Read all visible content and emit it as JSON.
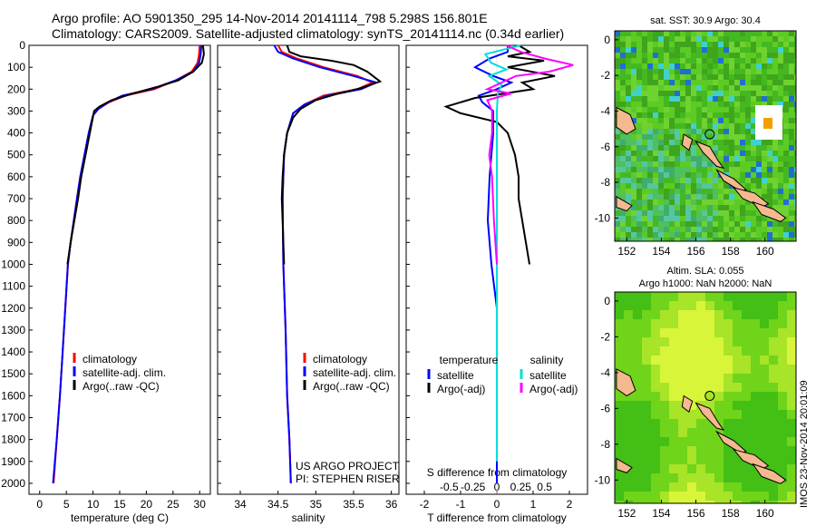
{
  "title_line1": "Argo profile: AO 5901350_295 14-Nov-2014 20141114_798 5.298S 156.801E",
  "title_line2": "Climatology: CARS2009. Satellite-adjusted climatology: synTS_20141114.nc (0.34d earlier)",
  "timestamp": "IMOS 23-Nov-2014 20:01:09",
  "colors": {
    "climatology": "#ff0000",
    "satellite": "#0000ff",
    "argo": "#000000",
    "argo_salinity": "#ff00ff",
    "satellite_salinity": "#00dddd"
  },
  "chart_data": [
    {
      "type": "line",
      "panel": "temperature",
      "xlabel": "temperature (deg C)",
      "ylim": [
        2050,
        0
      ],
      "xlim": [
        -2,
        32
      ],
      "xticks": [
        0,
        5,
        10,
        15,
        20,
        25,
        30
      ],
      "yticks": [
        0,
        100,
        200,
        300,
        400,
        500,
        600,
        700,
        800,
        900,
        1000,
        1100,
        1200,
        1300,
        1400,
        1500,
        1600,
        1700,
        1800,
        1900,
        2000
      ],
      "legend": [
        "climatology",
        "satellite-adj. clim.",
        "Argo(..raw -QC)"
      ],
      "series": [
        {
          "name": "climatology",
          "color": "#ff0000",
          "points": [
            [
              30.0,
              0
            ],
            [
              29.9,
              40
            ],
            [
              29.6,
              80
            ],
            [
              28.5,
              120
            ],
            [
              25.5,
              160
            ],
            [
              21.5,
              200
            ],
            [
              16.0,
              230
            ],
            [
              13.0,
              260
            ],
            [
              11.0,
              290
            ],
            [
              10.0,
              320
            ],
            [
              9.2,
              400
            ],
            [
              8.4,
              500
            ],
            [
              7.6,
              600
            ],
            [
              7.0,
              700
            ],
            [
              6.4,
              800
            ],
            [
              5.8,
              900
            ],
            [
              5.3,
              1000
            ],
            [
              4.8,
              1200
            ],
            [
              4.3,
              1400
            ],
            [
              3.8,
              1600
            ],
            [
              3.2,
              1800
            ],
            [
              2.6,
              2000
            ]
          ]
        },
        {
          "name": "satellite-adj. clim.",
          "color": "#0000ff",
          "points": [
            [
              30.3,
              0
            ],
            [
              30.2,
              40
            ],
            [
              29.9,
              80
            ],
            [
              28.8,
              120
            ],
            [
              25.5,
              160
            ],
            [
              21.0,
              200
            ],
            [
              15.5,
              230
            ],
            [
              12.8,
              260
            ],
            [
              11.0,
              290
            ],
            [
              10.0,
              320
            ],
            [
              9.2,
              400
            ],
            [
              8.4,
              500
            ],
            [
              7.6,
              600
            ],
            [
              7.0,
              700
            ],
            [
              6.4,
              800
            ],
            [
              5.8,
              900
            ],
            [
              5.3,
              1000
            ],
            [
              4.8,
              1200
            ],
            [
              4.3,
              1400
            ],
            [
              3.8,
              1600
            ],
            [
              3.2,
              1800
            ],
            [
              2.5,
              2000
            ]
          ]
        },
        {
          "name": "Argo(..raw -QC)",
          "color": "#000000",
          "points": [
            [
              30.6,
              0
            ],
            [
              30.8,
              40
            ],
            [
              30.4,
              80
            ],
            [
              28.8,
              120
            ],
            [
              26.0,
              160
            ],
            [
              22.0,
              190
            ],
            [
              17.5,
              220
            ],
            [
              13.5,
              250
            ],
            [
              11.2,
              280
            ],
            [
              10.2,
              300
            ],
            [
              9.4,
              400
            ],
            [
              8.6,
              500
            ],
            [
              7.8,
              600
            ],
            [
              7.2,
              700
            ],
            [
              6.5,
              800
            ],
            [
              5.8,
              900
            ],
            [
              5.2,
              1000
            ]
          ]
        }
      ]
    },
    {
      "type": "line",
      "panel": "salinity",
      "xlabel": "salinity",
      "ylim": [
        2050,
        0
      ],
      "xlim": [
        33.7,
        36.1
      ],
      "xticks": [
        34,
        34.5,
        35,
        35.5,
        36
      ],
      "xtick_labels": [
        "34",
        "34.5",
        "35",
        "35.5",
        "36"
      ],
      "legend": [
        "climatology",
        "satellite-adj. clim.",
        "Argo(..raw -QC)"
      ],
      "annotation": [
        "US ARGO PROJECT",
        "PI: STEPHEN RISER"
      ],
      "series": [
        {
          "name": "climatology",
          "color": "#ff0000",
          "points": [
            [
              34.5,
              0
            ],
            [
              34.55,
              30
            ],
            [
              34.75,
              60
            ],
            [
              35.1,
              100
            ],
            [
              35.55,
              140
            ],
            [
              35.75,
              170
            ],
            [
              35.55,
              200
            ],
            [
              35.1,
              230
            ],
            [
              34.85,
              270
            ],
            [
              34.7,
              310
            ],
            [
              34.62,
              400
            ],
            [
              34.58,
              500
            ],
            [
              34.56,
              700
            ],
            [
              34.57,
              1000
            ],
            [
              34.6,
              1300
            ],
            [
              34.62,
              1600
            ],
            [
              34.65,
              1800
            ],
            [
              34.67,
              2000
            ]
          ]
        },
        {
          "name": "satellite-adj. clim.",
          "color": "#0000ff",
          "points": [
            [
              34.45,
              0
            ],
            [
              34.5,
              30
            ],
            [
              34.7,
              60
            ],
            [
              35.05,
              100
            ],
            [
              35.5,
              140
            ],
            [
              35.8,
              170
            ],
            [
              35.6,
              200
            ],
            [
              35.15,
              230
            ],
            [
              34.85,
              270
            ],
            [
              34.7,
              310
            ],
            [
              34.62,
              400
            ],
            [
              34.58,
              500
            ],
            [
              34.56,
              700
            ],
            [
              34.57,
              1000
            ],
            [
              34.6,
              1300
            ],
            [
              34.62,
              1600
            ],
            [
              34.65,
              1800
            ],
            [
              34.67,
              2000
            ]
          ]
        },
        {
          "name": "Argo(..raw -QC)",
          "color": "#000000",
          "points": [
            [
              34.62,
              0
            ],
            [
              34.65,
              30
            ],
            [
              34.8,
              50
            ],
            [
              35.2,
              70
            ],
            [
              35.5,
              90
            ],
            [
              35.68,
              120
            ],
            [
              35.85,
              165
            ],
            [
              35.6,
              195
            ],
            [
              35.3,
              220
            ],
            [
              35.0,
              250
            ],
            [
              34.8,
              290
            ],
            [
              34.7,
              330
            ],
            [
              34.62,
              400
            ],
            [
              34.58,
              500
            ],
            [
              34.56,
              600
            ],
            [
              34.55,
              700
            ],
            [
              34.56,
              800
            ],
            [
              34.57,
              900
            ],
            [
              34.58,
              1000
            ]
          ]
        }
      ]
    },
    {
      "type": "line",
      "panel": "difference",
      "xlabel": "T difference from climatology",
      "xlabel_top": "S difference from climatology",
      "ylim": [
        2050,
        0
      ],
      "xlim": [
        -2.5,
        2.5
      ],
      "xticks": [
        -2,
        -1,
        0,
        1,
        2
      ],
      "xtick_labels": [
        "-2",
        "-1",
        "0",
        "1",
        "2"
      ],
      "sticks": [
        -0.5,
        -0.25,
        0,
        0.25,
        0.5
      ],
      "stick_labels": [
        "-0.5",
        "-0.25",
        "0",
        "0.25",
        "0.5"
      ],
      "legend_header": [
        "temperature",
        "salinity"
      ],
      "legend": [
        "satellite",
        "Argo(-adj)",
        "satellite",
        "Argo(-adj)"
      ],
      "series": [
        {
          "name": "temperature satellite",
          "color": "#0000ff",
          "points": [
            [
              0.3,
              0
            ],
            [
              0.3,
              30
            ],
            [
              -0.2,
              60
            ],
            [
              -0.6,
              100
            ],
            [
              -0.1,
              140
            ],
            [
              0.4,
              170
            ],
            [
              0.0,
              200
            ],
            [
              -0.5,
              230
            ],
            [
              -0.4,
              260
            ],
            [
              -0.1,
              300
            ],
            [
              -0.1,
              400
            ],
            [
              -0.15,
              500
            ],
            [
              -0.2,
              600
            ],
            [
              -0.25,
              800
            ],
            [
              -0.15,
              1000
            ],
            [
              0.0,
              1200
            ],
            [
              0.0,
              1600
            ],
            [
              0.0,
              2000
            ]
          ]
        },
        {
          "name": "temperature Argo(-adj)",
          "color": "#000000",
          "points": [
            [
              0.6,
              0
            ],
            [
              0.9,
              30
            ],
            [
              0.3,
              50
            ],
            [
              1.3,
              70
            ],
            [
              0.3,
              100
            ],
            [
              1.6,
              140
            ],
            [
              0.7,
              170
            ],
            [
              1.0,
              200
            ],
            [
              -0.6,
              240
            ],
            [
              -1.4,
              280
            ],
            [
              -1.0,
              310
            ],
            [
              0.0,
              350
            ],
            [
              0.3,
              400
            ],
            [
              0.5,
              500
            ],
            [
              0.6,
              600
            ],
            [
              0.6,
              700
            ],
            [
              0.7,
              800
            ],
            [
              0.8,
              900
            ],
            [
              0.9,
              1000
            ]
          ]
        },
        {
          "name": "salinity satellite",
          "color": "#00dddd",
          "points": [
            [
              0.25,
              0
            ],
            [
              -0.12,
              40
            ],
            [
              -0.06,
              80
            ],
            [
              0.1,
              110
            ],
            [
              -0.08,
              140
            ],
            [
              0.05,
              180
            ],
            [
              0.01,
              220
            ],
            [
              0.0,
              300
            ],
            [
              0.0,
              600
            ],
            [
              0.0,
              1000
            ],
            [
              0.0,
              1500
            ],
            [
              0.0,
              1900
            ]
          ]
        },
        {
          "name": "salinity Argo(-adj)",
          "color": "#ff00ff",
          "points": [
            [
              0.1,
              0
            ],
            [
              0.25,
              30
            ],
            [
              0.5,
              60
            ],
            [
              0.8,
              90
            ],
            [
              0.55,
              120
            ],
            [
              0.2,
              140
            ],
            [
              0.1,
              160
            ],
            [
              -0.1,
              200
            ],
            [
              0.15,
              220
            ],
            [
              -0.1,
              250
            ],
            [
              -0.05,
              300
            ],
            [
              -0.05,
              400
            ],
            [
              -0.08,
              500
            ],
            [
              -0.05,
              600
            ],
            [
              -0.03,
              800
            ],
            [
              0.0,
              1000
            ]
          ]
        }
      ]
    },
    {
      "type": "heatmap",
      "panel": "sst_map",
      "title": "sat. SST: 30.9 Argo: 30.4",
      "xticks": [
        152,
        154,
        156,
        158,
        160
      ],
      "yticks": [
        0,
        -2,
        -4,
        -6,
        -8,
        -10
      ],
      "xlim": [
        151.3,
        161.8
      ],
      "ylim": [
        -11.3,
        0.5
      ],
      "marker": [
        156.8,
        -5.3
      ]
    },
    {
      "type": "heatmap",
      "panel": "sla_map",
      "title": "Altim. SLA: 0.055",
      "subtitle": "Argo h1000: NaN h2000: NaN",
      "xticks": [
        152,
        154,
        156,
        158,
        160
      ],
      "yticks": [
        0,
        -2,
        -4,
        -6,
        -8,
        -10
      ],
      "xlim": [
        151.3,
        161.8
      ],
      "ylim": [
        -11.3,
        0.5
      ],
      "marker": [
        156.8,
        -5.3
      ]
    }
  ]
}
